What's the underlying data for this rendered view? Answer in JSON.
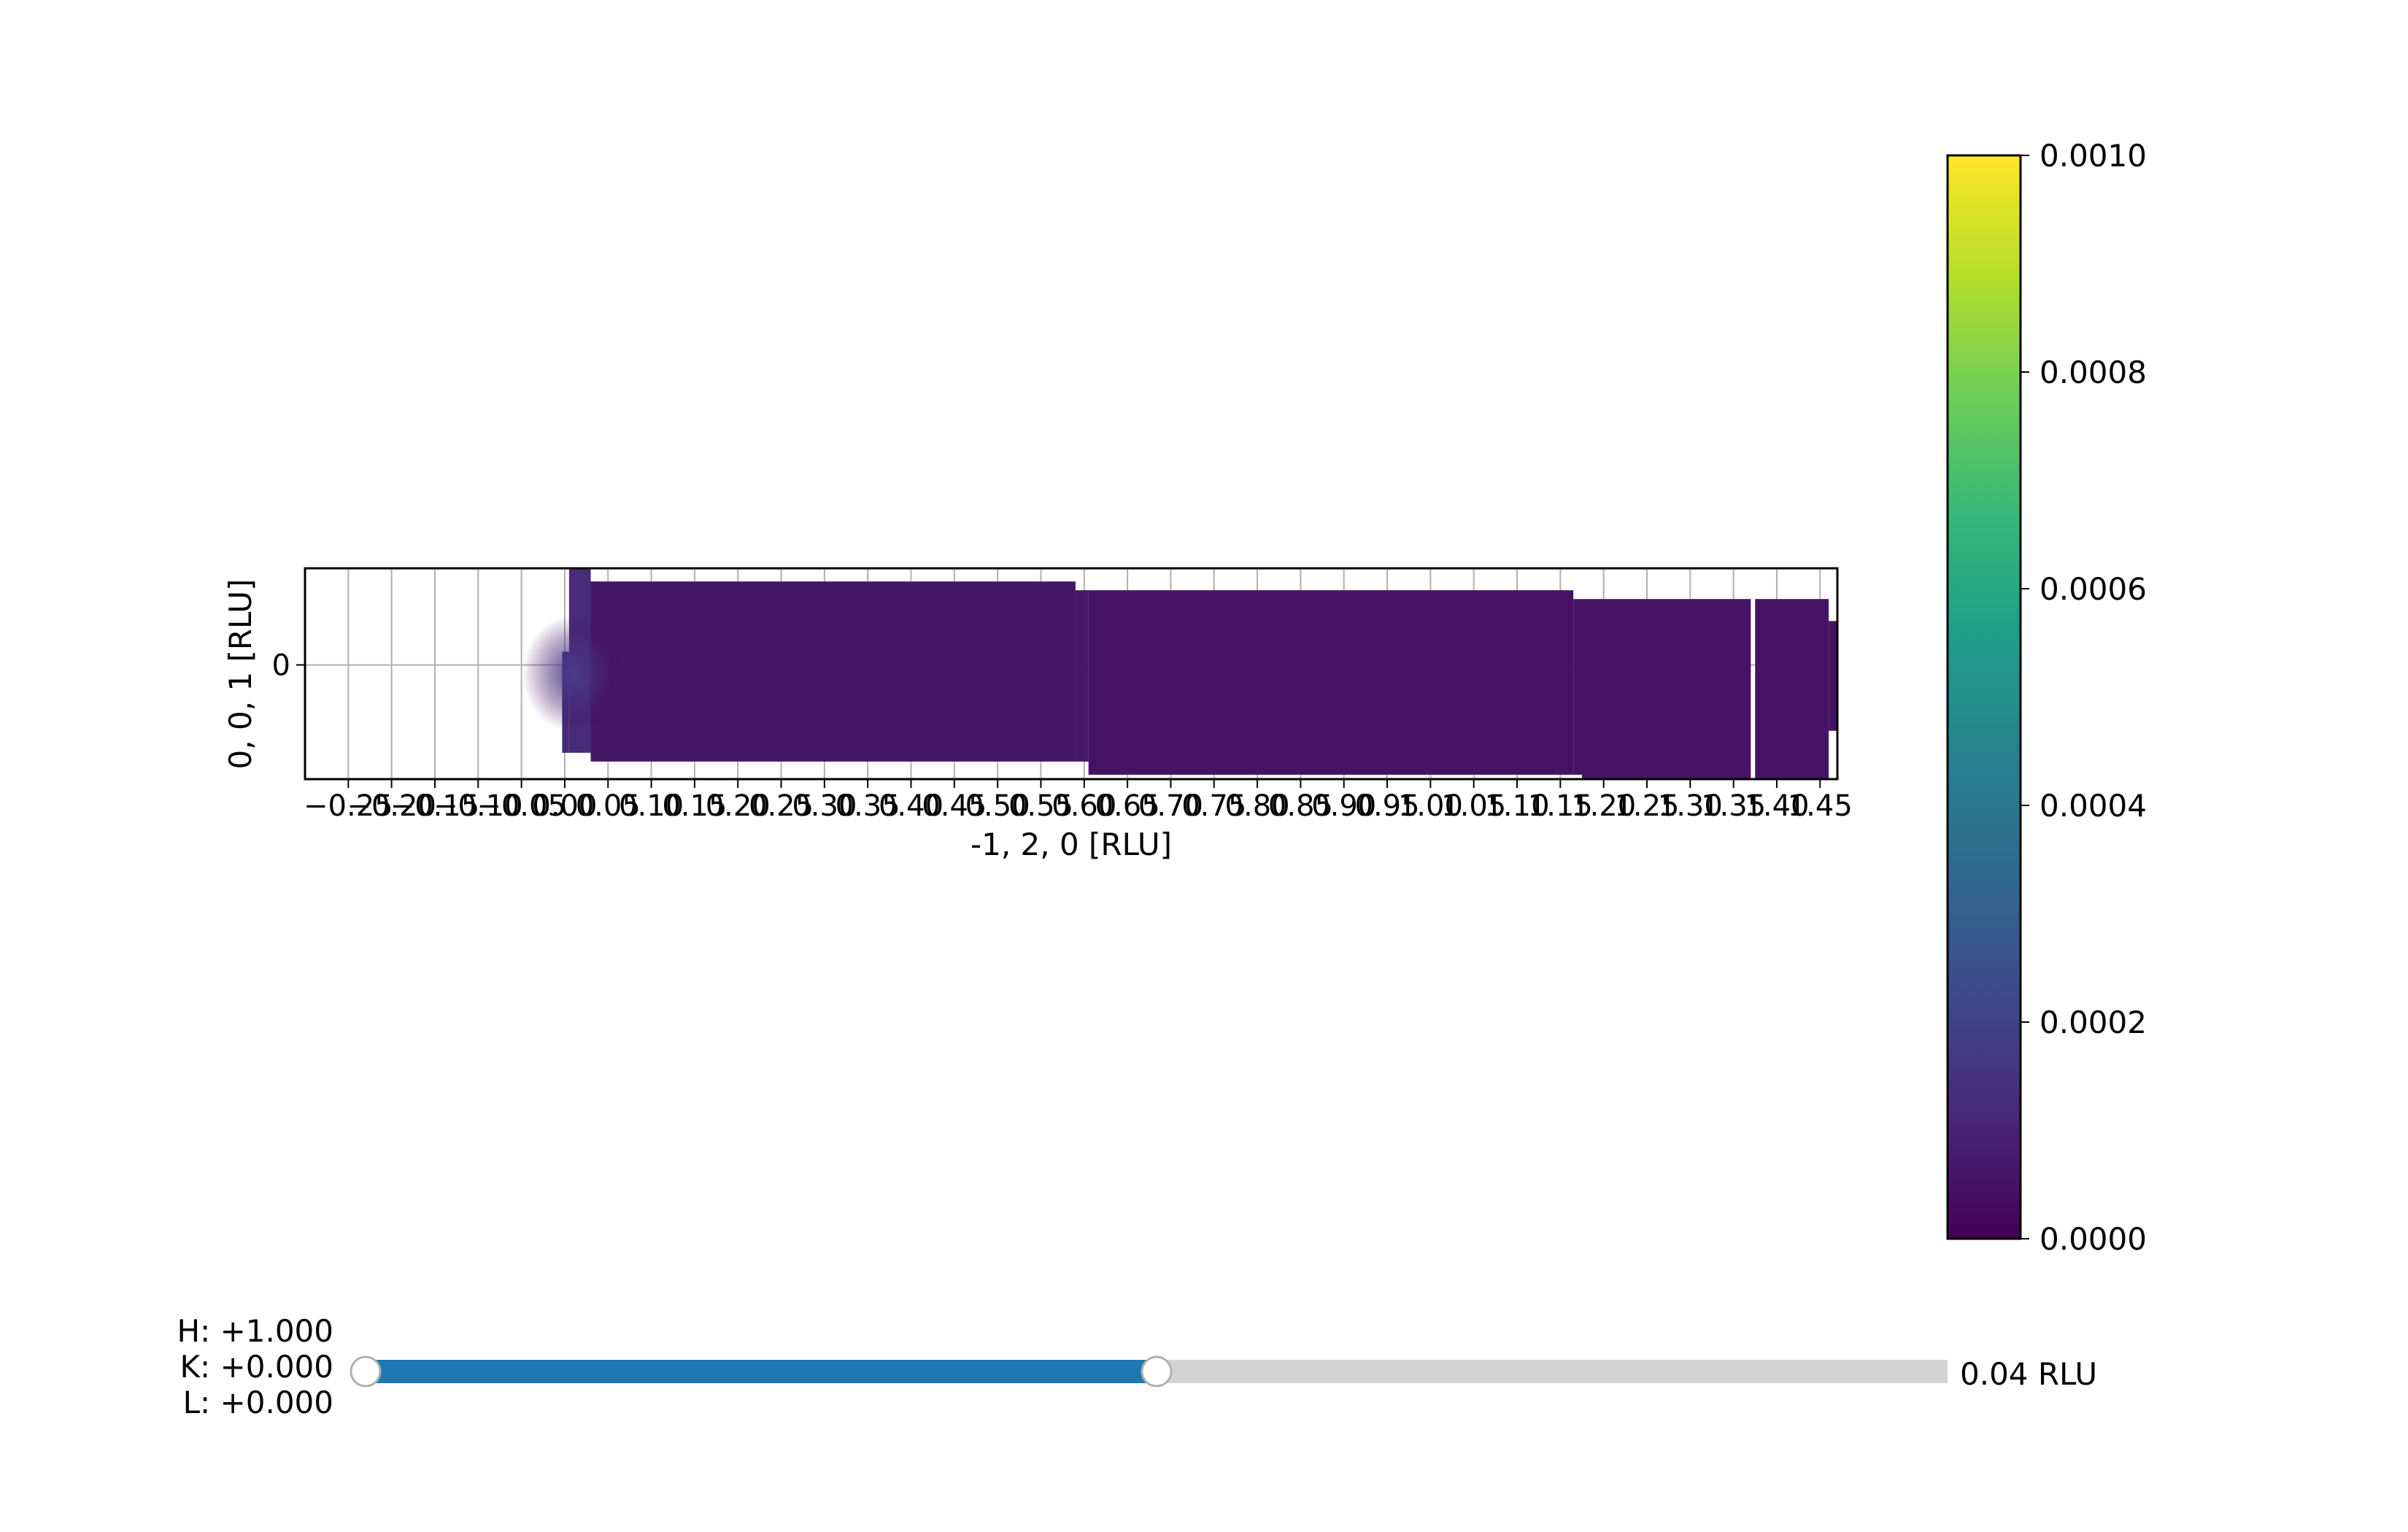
{
  "chart_data": {
    "type": "heatmap",
    "title": "",
    "xlabel": "-1, 2, 0 [RLU]",
    "ylabel": "0, 0, 1 [RLU]",
    "x_ticks": [
      "−0.25",
      "−0.20",
      "−0.15",
      "−0.10",
      "−0.05",
      "0.00",
      "0.05",
      "0.10",
      "0.15",
      "0.20",
      "0.25",
      "0.30",
      "0.35",
      "0.40",
      "0.45",
      "0.50",
      "0.55",
      "0.60",
      "0.65",
      "0.70",
      "0.75",
      "0.80",
      "0.85",
      "0.90",
      "0.95",
      "1.00",
      "1.05",
      "1.10",
      "1.15",
      "1.20",
      "1.25",
      "1.30",
      "1.35",
      "1.40",
      "1.45"
    ],
    "x_tick_values": [
      -0.25,
      -0.2,
      -0.15,
      -0.1,
      -0.05,
      0.0,
      0.05,
      0.1,
      0.15,
      0.2,
      0.25,
      0.3,
      0.35,
      0.4,
      0.45,
      0.5,
      0.55,
      0.6,
      0.65,
      0.7,
      0.75,
      0.8,
      0.85,
      0.9,
      0.95,
      1.0,
      1.05,
      1.1,
      1.15,
      1.2,
      1.25,
      1.3,
      1.35,
      1.4,
      1.45
    ],
    "xlim": [
      -0.3,
      1.47
    ],
    "y_ticks": [
      "0"
    ],
    "y_tick_values": [
      0
    ],
    "ylim": [
      -0.13,
      0.11
    ],
    "grid": true,
    "colormap": "viridis",
    "colorbar": {
      "range": [
        0.0,
        0.001
      ],
      "ticks": [
        "0.0000",
        "0.0002",
        "0.0004",
        "0.0006",
        "0.0008",
        "0.0010"
      ],
      "tick_values": [
        0.0,
        0.0002,
        0.0004,
        0.0006,
        0.0008,
        0.001
      ],
      "stops": [
        "#440154",
        "#482878",
        "#3e4989",
        "#31688e",
        "#26828e",
        "#1f9e89",
        "#35b779",
        "#6ece58",
        "#b5de2b",
        "#fde725"
      ]
    },
    "data_regions": [
      {
        "x": [
          0.005,
          0.03
        ],
        "y": [
          -0.1,
          0.11
        ],
        "value": 0.00012
      },
      {
        "x": [
          -0.003,
          0.005
        ],
        "y": [
          -0.1,
          0.015
        ],
        "value": 0.00012
      },
      {
        "x": [
          0.03,
          0.59
        ],
        "y": [
          -0.11,
          0.095
        ],
        "value": 6e-05
      },
      {
        "x": [
          0.59,
          0.605
        ],
        "y": [
          -0.11,
          0.085
        ],
        "value": 6e-05
      },
      {
        "x": [
          0.605,
          1.165
        ],
        "y": [
          -0.125,
          0.085
        ],
        "value": 5e-05
      },
      {
        "x": [
          1.165,
          1.175
        ],
        "y": [
          -0.125,
          0.075
        ],
        "value": 5e-05
      },
      {
        "x": [
          1.175,
          1.37
        ],
        "y": [
          -0.13,
          0.075
        ],
        "value": 5e-05
      },
      {
        "x": [
          1.375,
          1.46
        ],
        "y": [
          -0.13,
          0.075
        ],
        "value": 5e-05
      },
      {
        "x": [
          1.46,
          1.47
        ],
        "y": [
          -0.075,
          0.05
        ],
        "value": 5e-05
      }
    ],
    "hotspot": {
      "x": 0.01,
      "y": -0.01,
      "value": 0.00022
    }
  },
  "slider": {
    "h_text": "H: +1.000",
    "k_text": "K: +0.000",
    "l_text": "L: +0.000",
    "value_text": "0.04 RLU",
    "fraction": 0.5,
    "fill_color": "#1f77b4",
    "track_color": "#d3d3d3"
  }
}
